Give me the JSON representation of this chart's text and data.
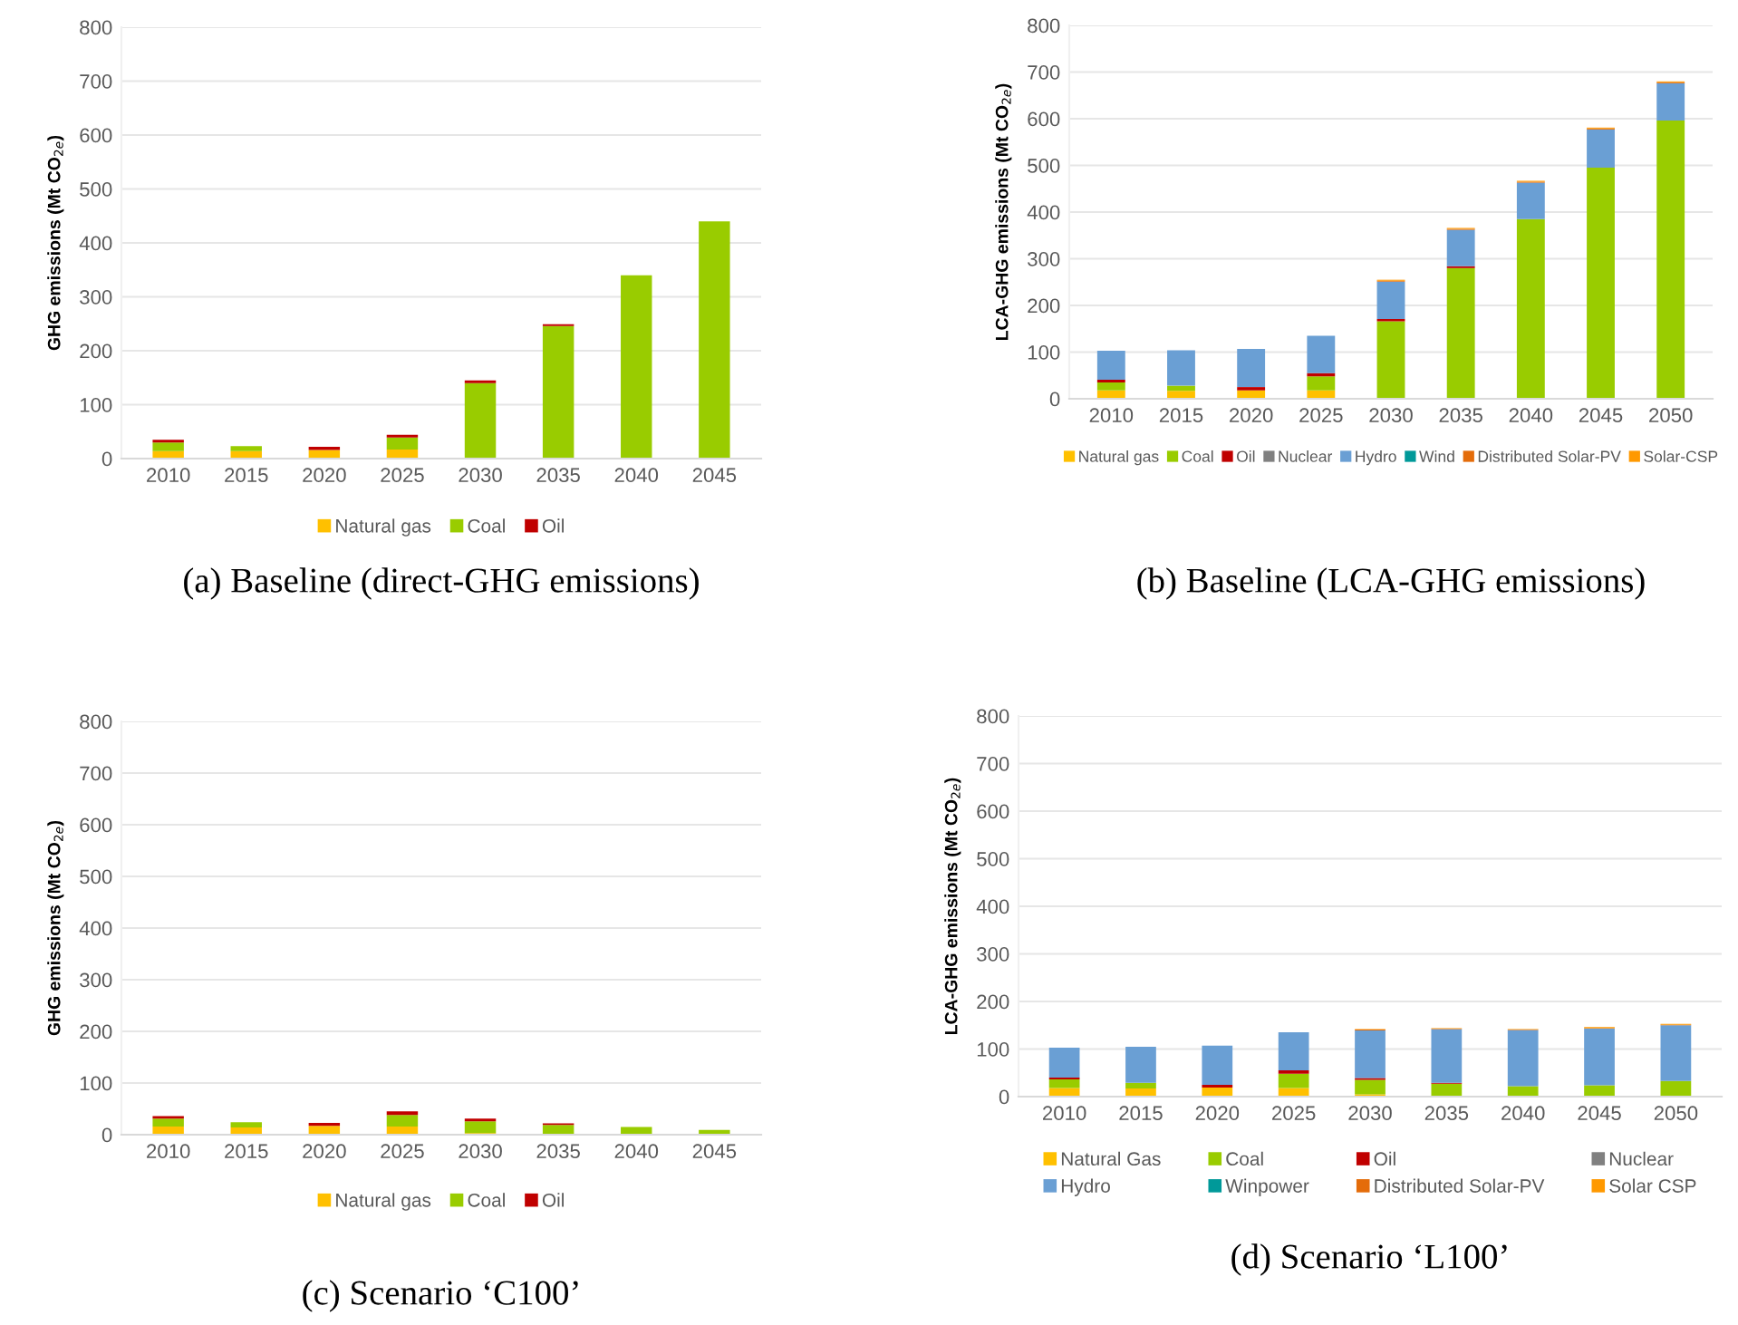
{
  "chart_data": [
    {
      "type": "bar",
      "stacked": true,
      "ylabel": "GHG emissions (Mt CO$_{2e}$)",
      "categories": [
        "2010",
        "2015",
        "2020",
        "2025",
        "2030",
        "2035",
        "2040",
        "2045"
      ],
      "ylim": [
        0,
        800
      ],
      "yticks": [
        0,
        100,
        200,
        300,
        400,
        500,
        600,
        700,
        800
      ],
      "grid": "y",
      "legend": "bottom",
      "annotations": [
        "(a) Baseline (direct-GHG emissions)"
      ],
      "series": [
        {
          "name": "Natural gas",
          "color": "#ffc000",
          "values": [
            14,
            14,
            16,
            17,
            null,
            0,
            0,
            0
          ]
        },
        {
          "name": "Coal",
          "color": "#99cc00",
          "values": [
            16,
            9,
            0,
            22,
            140,
            246,
            340,
            440
          ]
        },
        {
          "name": "Oil",
          "color": "#c00000",
          "values": [
            5,
            0,
            6,
            5,
            5,
            3,
            0,
            0
          ]
        }
      ]
    },
    {
      "type": "bar",
      "stacked": true,
      "ylabel": "LCA-GHG emissions (Mt CO$_{2e}$)",
      "categories": [
        "2010",
        "2015",
        "2020",
        "2025",
        "2030",
        "2035",
        "2040",
        "2045",
        "2050"
      ],
      "ylim": [
        0,
        800
      ],
      "yticks": [
        0,
        100,
        200,
        300,
        400,
        500,
        600,
        700,
        800
      ],
      "grid": "y",
      "legend": "bottom",
      "annotations": [
        "(b) Baseline (LCA-GHG emissions)"
      ],
      "series": [
        {
          "name": "Natural gas",
          "color": "#ffc000",
          "values": [
            18,
            17,
            18,
            18,
            2,
            0,
            0,
            0,
            0
          ]
        },
        {
          "name": "Coal",
          "color": "#99cc00",
          "values": [
            17,
            11,
            0,
            30,
            164,
            280,
            385,
            495,
            596
          ]
        },
        {
          "name": "Oil",
          "color": "#c00000",
          "values": [
            6,
            0,
            7,
            7,
            5,
            4,
            0,
            0,
            0
          ]
        },
        {
          "name": "Nuclear",
          "color": "#808080",
          "values": [
            0,
            0,
            0,
            0,
            0,
            0,
            0,
            0,
            0
          ]
        },
        {
          "name": "Hydro",
          "color": "#6a9fd4",
          "values": [
            62,
            76,
            82,
            80,
            80,
            78,
            78,
            82,
            80
          ]
        },
        {
          "name": "Wind",
          "color": "#009999",
          "values": [
            0,
            0,
            0,
            0,
            0,
            0,
            0,
            0,
            0
          ]
        },
        {
          "name": "Distributed Solar-PV",
          "color": "#e46c0a",
          "values": [
            0,
            0,
            0,
            0,
            2,
            2,
            2,
            2,
            2
          ]
        },
        {
          "name": "Solar-CSP",
          "color": "#ff9900",
          "values": [
            0,
            0,
            0,
            0,
            2,
            2,
            2,
            2,
            2
          ]
        }
      ]
    },
    {
      "type": "bar",
      "stacked": true,
      "ylabel": "GHG emissions (Mt CO$_{2e}$)",
      "categories": [
        "2010",
        "2015",
        "2020",
        "2025",
        "2030",
        "2035",
        "2040",
        "2045"
      ],
      "ylim": [
        0,
        800
      ],
      "yticks": [
        0,
        100,
        200,
        300,
        400,
        500,
        600,
        700,
        800
      ],
      "grid": "y",
      "legend": "bottom",
      "annotations": [
        "(c) Scenario ‘C100’"
      ],
      "series": [
        {
          "name": "Natural gas",
          "color": "#ffc000",
          "values": [
            16,
            14,
            17,
            16,
            3,
            0,
            0,
            0
          ]
        },
        {
          "name": "Coal",
          "color": "#99cc00",
          "values": [
            15,
            10,
            0,
            22,
            23,
            19,
            15,
            9
          ]
        },
        {
          "name": "Oil",
          "color": "#c00000",
          "values": [
            5,
            0,
            6,
            7,
            5,
            3,
            0,
            0
          ]
        }
      ]
    },
    {
      "type": "bar",
      "stacked": true,
      "ylabel": "LCA-GHG emissions (Mt CO$_{2e}$)",
      "categories": [
        "2010",
        "2015",
        "2020",
        "2025",
        "2030",
        "2035",
        "2040",
        "2045",
        "2050"
      ],
      "ylim": [
        0,
        800
      ],
      "yticks": [
        0,
        100,
        200,
        300,
        400,
        500,
        600,
        700,
        800
      ],
      "grid": "y",
      "legend": "bottom",
      "annotations": [
        "(d) Scenario ‘L100’"
      ],
      "series": [
        {
          "name": "Natural Gas",
          "color": "#ffc000",
          "values": [
            18,
            17,
            19,
            18,
            5,
            0,
            0,
            0,
            0
          ]
        },
        {
          "name": "Coal",
          "color": "#99cc00",
          "values": [
            18,
            12,
            0,
            30,
            30,
            27,
            22,
            24,
            33
          ]
        },
        {
          "name": "Oil",
          "color": "#c00000",
          "values": [
            4,
            0,
            6,
            7,
            4,
            2,
            0,
            0,
            0
          ]
        },
        {
          "name": "Nuclear",
          "color": "#808080",
          "values": [
            0,
            0,
            0,
            0,
            0,
            0,
            0,
            0,
            0
          ]
        },
        {
          "name": "Hydro",
          "color": "#6a9fd4",
          "values": [
            63,
            76,
            82,
            80,
            100,
            113,
            118,
            119,
            117
          ]
        },
        {
          "name": "Winpower",
          "color": "#009999",
          "values": [
            0,
            0,
            0,
            0,
            0,
            0,
            0,
            0,
            0
          ]
        },
        {
          "name": "Distributed Solar-PV",
          "color": "#e46c0a",
          "values": [
            0,
            0,
            0,
            0,
            2,
            1,
            1,
            1,
            1
          ]
        },
        {
          "name": "Solar CSP",
          "color": "#ff9900",
          "values": [
            0,
            0,
            0,
            0,
            1,
            1,
            1,
            2,
            2
          ]
        }
      ]
    }
  ]
}
